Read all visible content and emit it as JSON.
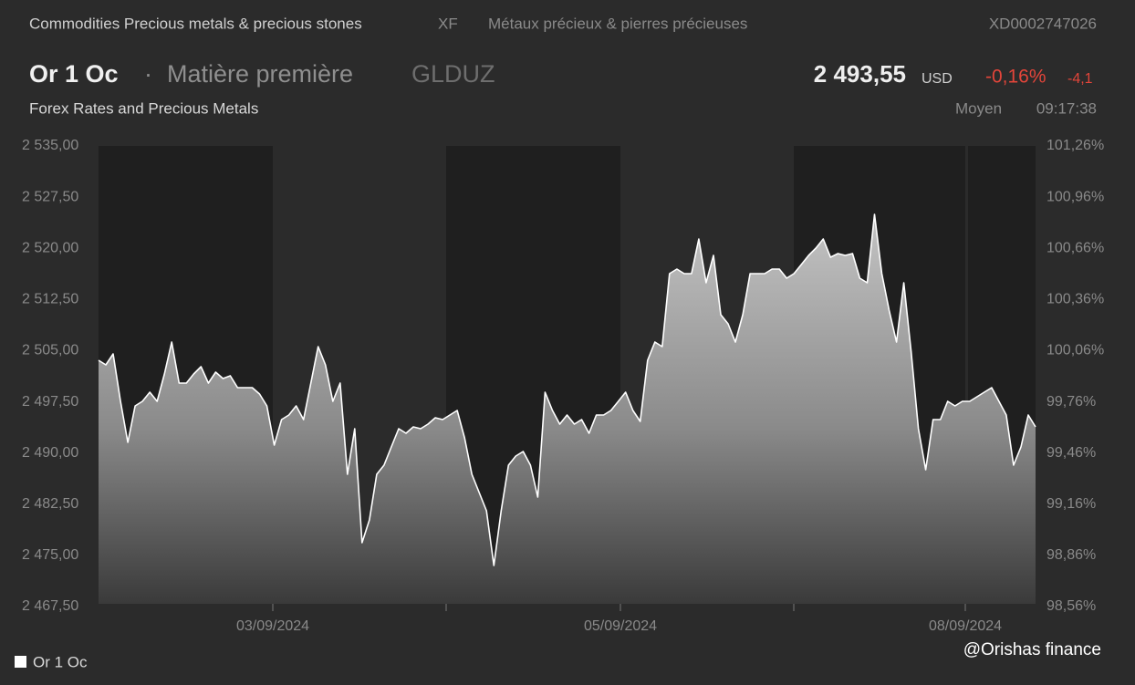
{
  "header": {
    "category": "Commodities Precious metals & precious stones",
    "exchange": "XF",
    "category_fr": "Métaux précieux & pierres précieuses",
    "isin": "XD0002747026",
    "name": "Or 1 Oc",
    "separator": "·",
    "kind": "Matière première",
    "ticker": "GLDUZ",
    "price": "2 493,55",
    "currency": "USD",
    "change_pct": "-0,16%",
    "change": "-4,1",
    "source": "Forex Rates and Precious Metals",
    "price_type": "Moyen",
    "time": "09:17:38"
  },
  "chart_data": {
    "type": "area",
    "series": [
      {
        "name": "Or 1 Oc",
        "color": "#ffffff",
        "values": [
          2503.59,
          2502.92,
          2504.53,
          2497.58,
          2491.56,
          2496.91,
          2497.58,
          2498.91,
          2497.58,
          2501.58,
          2506.26,
          2500.25,
          2500.25,
          2501.58,
          2502.65,
          2500.25,
          2501.85,
          2500.92,
          2501.32,
          2499.58,
          2499.58,
          2499.58,
          2498.64,
          2496.91,
          2491.16,
          2494.9,
          2495.57,
          2496.91,
          2494.9,
          2500.25,
          2505.59,
          2502.92,
          2497.58,
          2500.25,
          2486.88,
          2493.57,
          2476.86,
          2480.2,
          2486.88,
          2488.22,
          2490.89,
          2493.57,
          2492.9,
          2493.83,
          2493.57,
          2494.23,
          2495.17,
          2494.9,
          2495.57,
          2496.24,
          2492.23,
          2486.88,
          2484.21,
          2481.54,
          2473.52,
          2481.54,
          2488.22,
          2489.56,
          2490.22,
          2488.22,
          2483.54,
          2498.91,
          2496.24,
          2494.23,
          2495.57,
          2494.23,
          2494.9,
          2492.9,
          2495.57,
          2495.57,
          2496.24,
          2497.58,
          2498.91,
          2496.24,
          2494.63,
          2503.59,
          2506.26,
          2505.59,
          2516.29,
          2516.96,
          2516.29,
          2516.29,
          2521.37,
          2514.95,
          2518.96,
          2510.27,
          2508.94,
          2506.26,
          2510.27,
          2516.29,
          2516.29,
          2516.29,
          2516.96,
          2516.96,
          2515.62,
          2516.29,
          2517.62,
          2518.96,
          2520.03,
          2521.37,
          2518.69,
          2519.23,
          2518.96,
          2519.23,
          2515.62,
          2514.95,
          2524.98,
          2516.29,
          2510.94,
          2506.26,
          2514.95,
          2504.93,
          2493.57,
          2487.55,
          2494.9,
          2494.9,
          2497.58,
          2496.91,
          2497.58,
          2497.58,
          2498.24,
          2498.91,
          2499.58,
          2497.58,
          2495.57,
          2488.22,
          2490.89,
          2495.57,
          2493.83
        ]
      }
    ],
    "ylim": [
      2467.5,
      2535
    ],
    "yticks": [
      {
        "value": 2535,
        "label": "2 535,00"
      },
      {
        "value": 2527.5,
        "label": "2 527,50"
      },
      {
        "value": 2520,
        "label": "2 520,00"
      },
      {
        "value": 2512.5,
        "label": "2 512,50"
      },
      {
        "value": 2505,
        "label": "2 505,00"
      },
      {
        "value": 2497.5,
        "label": "2 497,50"
      },
      {
        "value": 2490,
        "label": "2 490,00"
      },
      {
        "value": 2482.5,
        "label": "2 482,50"
      },
      {
        "value": 2475,
        "label": "2 475,00"
      },
      {
        "value": 2467.5,
        "label": "2 467,50"
      }
    ],
    "y2lim": [
      98.56,
      101.26
    ],
    "y2ticks": [
      {
        "value": 101.26,
        "label": "101,26%"
      },
      {
        "value": 100.96,
        "label": "100,96%"
      },
      {
        "value": 100.66,
        "label": "100,66%"
      },
      {
        "value": 100.36,
        "label": "100,36%"
      },
      {
        "value": 100.06,
        "label": "100,06%"
      },
      {
        "value": 99.76,
        "label": "99,76%"
      },
      {
        "value": 99.46,
        "label": "99,46%"
      },
      {
        "value": 99.16,
        "label": "99,16%"
      },
      {
        "value": 98.86,
        "label": "98,86%"
      },
      {
        "value": 98.56,
        "label": "98,56%"
      }
    ],
    "x_tick_labels": [
      "03/09/2024",
      "05/09/2024",
      "08/09/2024"
    ],
    "watermark": "@Orishas finance"
  }
}
